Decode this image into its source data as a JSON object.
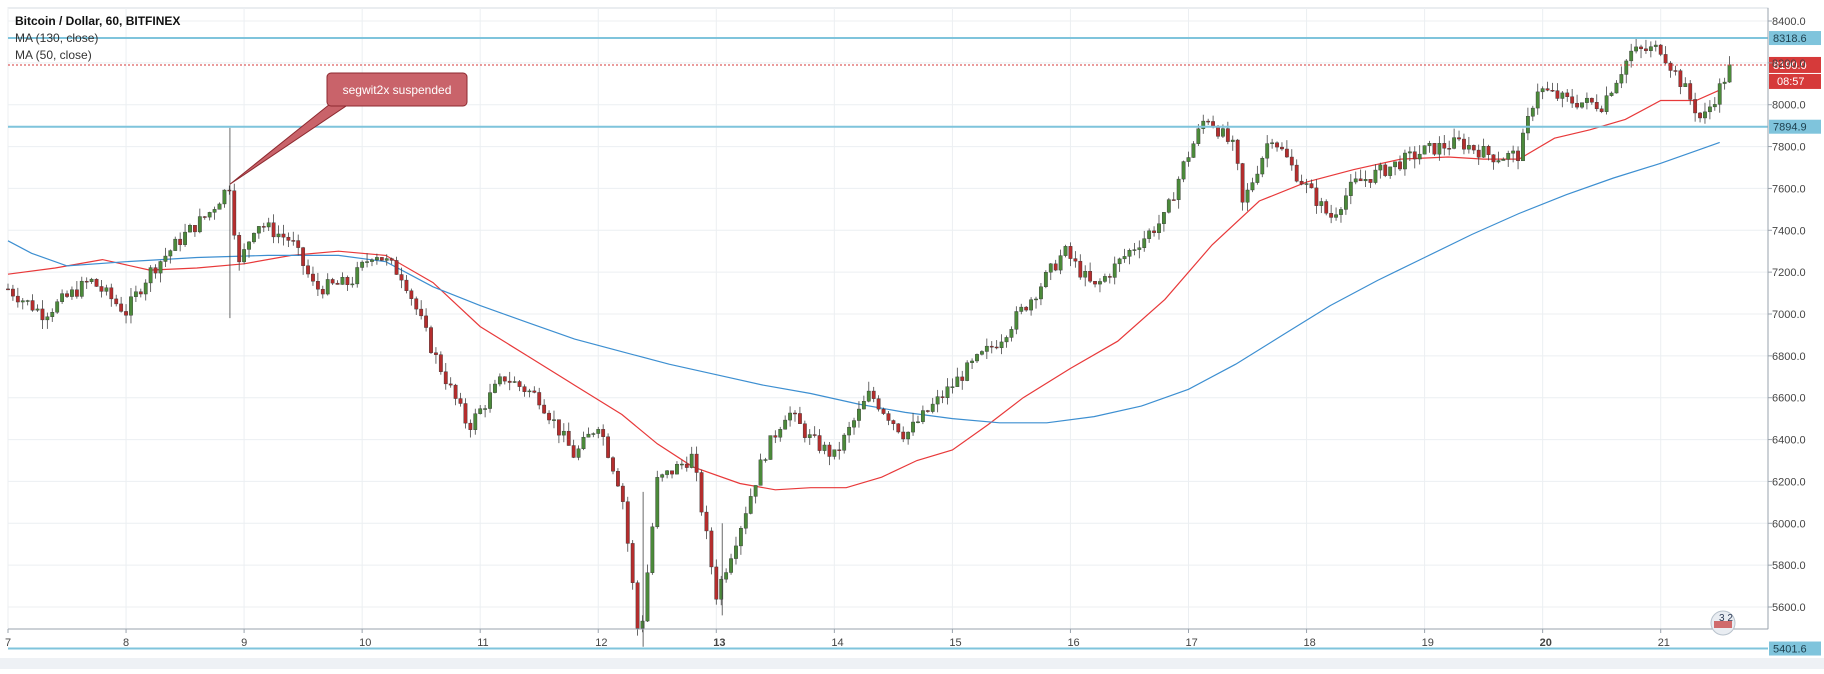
{
  "chart_data": {
    "type": "candlestick",
    "legend": {
      "title": "Bitcoin / Dollar, 60, BITFINEX",
      "ma130": "MA (130, close)",
      "ma50": "MA (50, close)"
    },
    "ylim": [
      5320,
      8460
    ],
    "y_ticks": [
      5600,
      5800,
      6000,
      6200,
      6400,
      6600,
      6800,
      7000,
      7200,
      7400,
      7600,
      7800,
      8000,
      8200,
      8400
    ],
    "y_tick_labels": [
      "5600.0",
      "5800.0",
      "6000.0",
      "6200.0",
      "6400.0",
      "6600.0",
      "6800.0",
      "7000.0",
      "7200.0",
      "7400.0",
      "7600.0",
      "7800.0",
      "8000.0",
      "8200.0",
      "8400.0"
    ],
    "x_tick_labels": [
      {
        "label": "7",
        "day": 7,
        "bold": false
      },
      {
        "label": "8",
        "day": 8,
        "bold": false
      },
      {
        "label": "9",
        "day": 9,
        "bold": false
      },
      {
        "label": "10",
        "day": 10,
        "bold": false
      },
      {
        "label": "11",
        "day": 11,
        "bold": false
      },
      {
        "label": "12",
        "day": 12,
        "bold": false
      },
      {
        "label": "13",
        "day": 13,
        "bold": true
      },
      {
        "label": "14",
        "day": 14,
        "bold": false
      },
      {
        "label": "15",
        "day": 15,
        "bold": false
      },
      {
        "label": "16",
        "day": 16,
        "bold": false
      },
      {
        "label": "17",
        "day": 17,
        "bold": false
      },
      {
        "label": "18",
        "day": 18,
        "bold": false
      },
      {
        "label": "19",
        "day": 19,
        "bold": false
      },
      {
        "label": "20",
        "day": 20,
        "bold": true
      },
      {
        "label": "21",
        "day": 21,
        "bold": false
      }
    ],
    "x_range_days": [
      7.0,
      21.9
    ],
    "horizontal_levels": [
      {
        "value": 8318.6,
        "label": "8318.6"
      },
      {
        "value": 7894.9,
        "label": "7894.9"
      },
      {
        "value": 5401.6,
        "label": "5401.6"
      }
    ],
    "last_price": {
      "value": 8190.0,
      "label": "8190.0",
      "countdown": "08:57"
    },
    "annotation": {
      "text": "segwit2x suspended",
      "point_day": 8.88,
      "point_price": 7620
    },
    "watermark_text": "3 2",
    "price_path": [
      [
        7.0,
        7120
      ],
      [
        7.3,
        7000
      ],
      [
        7.7,
        7160
      ],
      [
        8.0,
        7010
      ],
      [
        8.2,
        7200
      ],
      [
        8.5,
        7380
      ],
      [
        8.7,
        7480
      ],
      [
        8.88,
        7620
      ],
      [
        8.95,
        7220
      ],
      [
        9.1,
        7440
      ],
      [
        9.4,
        7350
      ],
      [
        9.6,
        7120
      ],
      [
        9.9,
        7150
      ],
      [
        10.1,
        7300
      ],
      [
        10.35,
        7180
      ],
      [
        10.6,
        6820
      ],
      [
        10.9,
        6460
      ],
      [
        11.2,
        6700
      ],
      [
        11.5,
        6600
      ],
      [
        11.8,
        6320
      ],
      [
        12.0,
        6480
      ],
      [
        12.2,
        6150
      ],
      [
        12.35,
        5420
      ],
      [
        12.5,
        6200
      ],
      [
        12.8,
        6320
      ],
      [
        13.0,
        5660
      ],
      [
        13.2,
        5980
      ],
      [
        13.4,
        6320
      ],
      [
        13.6,
        6540
      ],
      [
        13.8,
        6400
      ],
      [
        14.0,
        6320
      ],
      [
        14.3,
        6620
      ],
      [
        14.6,
        6420
      ],
      [
        14.9,
        6600
      ],
      [
        15.1,
        6720
      ],
      [
        15.4,
        6880
      ],
      [
        15.7,
        7100
      ],
      [
        15.95,
        7300
      ],
      [
        16.2,
        7120
      ],
      [
        16.5,
        7300
      ],
      [
        16.8,
        7460
      ],
      [
        16.95,
        7700
      ],
      [
        17.15,
        7950
      ],
      [
        17.4,
        7780
      ],
      [
        17.45,
        7510
      ],
      [
        17.7,
        7860
      ],
      [
        17.9,
        7680
      ],
      [
        18.2,
        7460
      ],
      [
        18.4,
        7620
      ],
      [
        18.7,
        7700
      ],
      [
        19.0,
        7780
      ],
      [
        19.3,
        7820
      ],
      [
        19.6,
        7750
      ],
      [
        19.8,
        7760
      ],
      [
        19.95,
        8080
      ],
      [
        20.2,
        8020
      ],
      [
        20.5,
        8000
      ],
      [
        20.75,
        8250
      ],
      [
        21.0,
        8270
      ],
      [
        21.2,
        8080
      ],
      [
        21.35,
        7920
      ],
      [
        21.5,
        8080
      ],
      [
        21.6,
        8190
      ]
    ],
    "series": [
      {
        "name": "MA (50, close)",
        "color": "#e8393a",
        "points": [
          [
            7.0,
            7190
          ],
          [
            7.4,
            7220
          ],
          [
            7.8,
            7260
          ],
          [
            8.2,
            7210
          ],
          [
            8.6,
            7220
          ],
          [
            9.0,
            7240
          ],
          [
            9.4,
            7280
          ],
          [
            9.8,
            7300
          ],
          [
            10.2,
            7280
          ],
          [
            10.6,
            7150
          ],
          [
            11.0,
            6940
          ],
          [
            11.4,
            6800
          ],
          [
            11.8,
            6660
          ],
          [
            12.2,
            6520
          ],
          [
            12.5,
            6380
          ],
          [
            12.8,
            6270
          ],
          [
            13.2,
            6190
          ],
          [
            13.5,
            6160
          ],
          [
            13.8,
            6170
          ],
          [
            14.1,
            6170
          ],
          [
            14.4,
            6220
          ],
          [
            14.7,
            6300
          ],
          [
            15.0,
            6350
          ],
          [
            15.3,
            6470
          ],
          [
            15.6,
            6600
          ],
          [
            16.0,
            6740
          ],
          [
            16.4,
            6870
          ],
          [
            16.8,
            7070
          ],
          [
            17.2,
            7330
          ],
          [
            17.6,
            7540
          ],
          [
            18.0,
            7630
          ],
          [
            18.4,
            7690
          ],
          [
            18.8,
            7740
          ],
          [
            19.2,
            7750
          ],
          [
            19.5,
            7740
          ],
          [
            19.8,
            7740
          ],
          [
            20.1,
            7840
          ],
          [
            20.4,
            7880
          ],
          [
            20.7,
            7930
          ],
          [
            21.0,
            8020
          ],
          [
            21.3,
            8020
          ],
          [
            21.5,
            8070
          ]
        ]
      },
      {
        "name": "MA (130, close)",
        "color": "#3d8fd1",
        "points": [
          [
            7.0,
            7350
          ],
          [
            7.2,
            7290
          ],
          [
            7.5,
            7230
          ],
          [
            8.0,
            7250
          ],
          [
            8.6,
            7270
          ],
          [
            9.2,
            7280
          ],
          [
            9.8,
            7280
          ],
          [
            10.2,
            7250
          ],
          [
            10.6,
            7130
          ],
          [
            11.0,
            7040
          ],
          [
            11.4,
            6960
          ],
          [
            11.8,
            6880
          ],
          [
            12.2,
            6820
          ],
          [
            12.6,
            6760
          ],
          [
            13.0,
            6710
          ],
          [
            13.4,
            6660
          ],
          [
            13.8,
            6620
          ],
          [
            14.2,
            6570
          ],
          [
            14.6,
            6530
          ],
          [
            15.0,
            6500
          ],
          [
            15.4,
            6480
          ],
          [
            15.8,
            6480
          ],
          [
            16.2,
            6510
          ],
          [
            16.6,
            6560
          ],
          [
            17.0,
            6640
          ],
          [
            17.4,
            6760
          ],
          [
            17.8,
            6900
          ],
          [
            18.2,
            7040
          ],
          [
            18.6,
            7160
          ],
          [
            19.0,
            7270
          ],
          [
            19.4,
            7380
          ],
          [
            19.8,
            7480
          ],
          [
            20.2,
            7570
          ],
          [
            20.6,
            7650
          ],
          [
            21.0,
            7720
          ],
          [
            21.3,
            7780
          ],
          [
            21.5,
            7820
          ]
        ]
      }
    ]
  }
}
